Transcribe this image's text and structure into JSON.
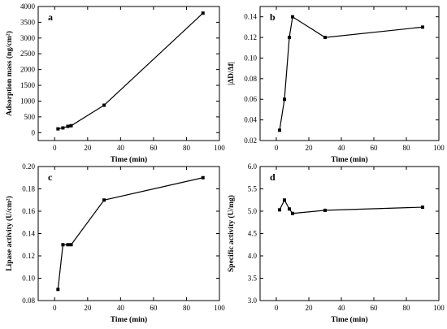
{
  "chart_data": [
    {
      "type": "line",
      "panel_label": "a",
      "xlabel": "Time (min)",
      "ylabel": "Adsorption mass (ng/cm²)",
      "xlim": [
        -10,
        100
      ],
      "ylim": [
        -250,
        4000
      ],
      "xticks": [
        0,
        20,
        40,
        60,
        80,
        100
      ],
      "yticks": [
        0,
        500,
        1000,
        1500,
        2000,
        2500,
        3000,
        3500,
        4000
      ],
      "xtick_labels": [
        "0",
        "20",
        "40",
        "60",
        "80",
        "100"
      ],
      "ytick_labels": [
        "0",
        "500",
        "1000",
        "1500",
        "2000",
        "2500",
        "3000",
        "3500",
        "4000"
      ],
      "series": [
        {
          "x": [
            2,
            5,
            8,
            10,
            30,
            90
          ],
          "y": [
            120,
            150,
            200,
            220,
            870,
            3790
          ]
        }
      ]
    },
    {
      "type": "line",
      "panel_label": "b",
      "xlabel": "Time (min)",
      "ylabel": "|ΔD/Δf|",
      "xlim": [
        -10,
        100
      ],
      "ylim": [
        0.02,
        0.15
      ],
      "xticks": [
        0,
        20,
        40,
        60,
        80,
        100
      ],
      "yticks": [
        0.02,
        0.04,
        0.06,
        0.08,
        0.1,
        0.12,
        0.14
      ],
      "xtick_labels": [
        "0",
        "20",
        "40",
        "60",
        "80",
        "100"
      ],
      "ytick_labels": [
        "0.02",
        "0.04",
        "0.06",
        "0.08",
        "0.10",
        "0.12",
        "0.14"
      ],
      "series": [
        {
          "x": [
            2,
            5,
            8,
            10,
            30,
            90
          ],
          "y": [
            0.03,
            0.06,
            0.12,
            0.14,
            0.12,
            0.13
          ]
        }
      ]
    },
    {
      "type": "line",
      "panel_label": "c",
      "xlabel": "Time (min)",
      "ylabel": "Lipase activity (U/cm²)",
      "xlim": [
        -10,
        100
      ],
      "ylim": [
        0.08,
        0.2
      ],
      "xticks": [
        0,
        20,
        40,
        60,
        80,
        100
      ],
      "yticks": [
        0.08,
        0.1,
        0.12,
        0.14,
        0.16,
        0.18,
        0.2
      ],
      "xtick_labels": [
        "0",
        "20",
        "40",
        "60",
        "80",
        "100"
      ],
      "ytick_labels": [
        "0.08",
        "0.10",
        "0.12",
        "0.14",
        "0.16",
        "0.18",
        "0.20"
      ],
      "series": [
        {
          "x": [
            2,
            5,
            8,
            10,
            30,
            90
          ],
          "y": [
            0.09,
            0.13,
            0.13,
            0.13,
            0.17,
            0.19
          ]
        }
      ]
    },
    {
      "type": "line",
      "panel_label": "d",
      "xlabel": "Time (min)",
      "ylabel": "Specific activity (U/mg)",
      "xlim": [
        -10,
        100
      ],
      "ylim": [
        3.0,
        6.0
      ],
      "xticks": [
        0,
        20,
        40,
        60,
        80,
        100
      ],
      "yticks": [
        3.0,
        3.5,
        4.0,
        4.5,
        5.0,
        5.5,
        6.0
      ],
      "xtick_labels": [
        "0",
        "20",
        "40",
        "60",
        "80",
        "100"
      ],
      "ytick_labels": [
        "3.0",
        "3.5",
        "4.0",
        "4.5",
        "5.0",
        "5.5",
        "6.0"
      ],
      "series": [
        {
          "x": [
            2,
            5,
            8,
            10,
            30,
            90
          ],
          "y": [
            5.03,
            5.25,
            5.05,
            4.95,
            5.02,
            5.09
          ]
        }
      ]
    }
  ]
}
